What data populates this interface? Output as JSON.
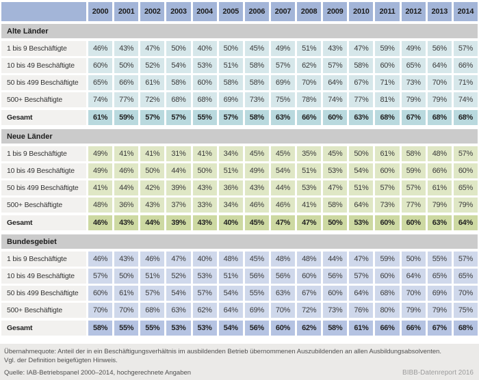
{
  "colors": {
    "page_bg": "#ffffff",
    "header_blue": "#a3b5d8",
    "section_header_bg": "#cbcbcb",
    "label_bg": "#f2f1ef",
    "alte_cell": "#d6e7ea",
    "alte_total": "#b9d9de",
    "neue_cell": "#dfe7c5",
    "neue_total": "#cdd9a2",
    "bund_cell": "#cfd8eb",
    "bund_total": "#b5c3e2",
    "footer_bg": "#ebeae8",
    "brand_text": "#9b9b9b"
  },
  "years": [
    "2000",
    "2001",
    "2002",
    "2003",
    "2004",
    "2005",
    "2006",
    "2007",
    "2008",
    "2009",
    "2010",
    "2011",
    "2012",
    "2013",
    "2014"
  ],
  "sections": [
    {
      "title": "Alte Länder",
      "theme": "alte",
      "rows": [
        {
          "label": "1 bis 9 Beschäftigte",
          "total": false,
          "values": [
            "46%",
            "43%",
            "47%",
            "50%",
            "40%",
            "50%",
            "45%",
            "49%",
            "51%",
            "43%",
            "47%",
            "59%",
            "49%",
            "56%",
            "57%"
          ]
        },
        {
          "label": "10 bis 49 Beschäftigte",
          "total": false,
          "values": [
            "60%",
            "50%",
            "52%",
            "54%",
            "53%",
            "51%",
            "58%",
            "57%",
            "62%",
            "57%",
            "58%",
            "60%",
            "65%",
            "64%",
            "66%"
          ]
        },
        {
          "label": "50 bis 499 Beschäftigte",
          "total": false,
          "values": [
            "65%",
            "66%",
            "61%",
            "58%",
            "60%",
            "58%",
            "58%",
            "69%",
            "70%",
            "64%",
            "67%",
            "71%",
            "73%",
            "70%",
            "71%"
          ]
        },
        {
          "label": "500+ Beschäftigte",
          "total": false,
          "values": [
            "74%",
            "77%",
            "72%",
            "68%",
            "68%",
            "69%",
            "73%",
            "75%",
            "78%",
            "74%",
            "77%",
            "81%",
            "79%",
            "79%",
            "74%"
          ]
        },
        {
          "label": "Gesamt",
          "total": true,
          "values": [
            "61%",
            "59%",
            "57%",
            "57%",
            "55%",
            "57%",
            "58%",
            "63%",
            "66%",
            "60%",
            "63%",
            "68%",
            "67%",
            "68%",
            "68%"
          ]
        }
      ]
    },
    {
      "title": "Neue Länder",
      "theme": "neue",
      "rows": [
        {
          "label": "1 bis 9 Beschäftigte",
          "total": false,
          "values": [
            "49%",
            "41%",
            "41%",
            "31%",
            "41%",
            "34%",
            "45%",
            "45%",
            "35%",
            "45%",
            "50%",
            "61%",
            "58%",
            "48%",
            "57%"
          ]
        },
        {
          "label": "10 bis 49 Beschäftigte",
          "total": false,
          "values": [
            "49%",
            "46%",
            "50%",
            "44%",
            "50%",
            "51%",
            "49%",
            "54%",
            "51%",
            "53%",
            "54%",
            "60%",
            "59%",
            "66%",
            "60%"
          ]
        },
        {
          "label": "50 bis 499 Beschäftigte",
          "total": false,
          "values": [
            "41%",
            "44%",
            "42%",
            "39%",
            "43%",
            "36%",
            "43%",
            "44%",
            "53%",
            "47%",
            "51%",
            "57%",
            "57%",
            "61%",
            "65%"
          ]
        },
        {
          "label": "500+ Beschäftigte",
          "total": false,
          "values": [
            "48%",
            "36%",
            "43%",
            "37%",
            "33%",
            "34%",
            "46%",
            "46%",
            "41%",
            "58%",
            "64%",
            "73%",
            "77%",
            "79%",
            "79%"
          ]
        },
        {
          "label": "Gesamt",
          "total": true,
          "values": [
            "46%",
            "43%",
            "44%",
            "39%",
            "43%",
            "40%",
            "45%",
            "47%",
            "47%",
            "50%",
            "53%",
            "60%",
            "60%",
            "63%",
            "64%"
          ]
        }
      ]
    },
    {
      "title": "Bundesgebiet",
      "theme": "bund",
      "rows": [
        {
          "label": "1 bis 9 Beschäftigte",
          "total": false,
          "values": [
            "46%",
            "43%",
            "46%",
            "47%",
            "40%",
            "48%",
            "45%",
            "48%",
            "48%",
            "44%",
            "47%",
            "59%",
            "50%",
            "55%",
            "57%"
          ]
        },
        {
          "label": "10 bis 49 Beschäftigte",
          "total": false,
          "values": [
            "57%",
            "50%",
            "51%",
            "52%",
            "53%",
            "51%",
            "56%",
            "56%",
            "60%",
            "56%",
            "57%",
            "60%",
            "64%",
            "65%",
            "65%"
          ]
        },
        {
          "label": "50 bis 499 Beschäftigte",
          "total": false,
          "values": [
            "60%",
            "61%",
            "57%",
            "54%",
            "57%",
            "54%",
            "55%",
            "63%",
            "67%",
            "60%",
            "64%",
            "68%",
            "70%",
            "69%",
            "70%"
          ]
        },
        {
          "label": "500+ Beschäftigte",
          "total": false,
          "values": [
            "70%",
            "70%",
            "68%",
            "63%",
            "62%",
            "64%",
            "69%",
            "70%",
            "72%",
            "73%",
            "76%",
            "80%",
            "79%",
            "79%",
            "75%"
          ]
        },
        {
          "label": "Gesamt",
          "total": true,
          "values": [
            "58%",
            "55%",
            "55%",
            "53%",
            "53%",
            "54%",
            "56%",
            "60%",
            "62%",
            "58%",
            "61%",
            "66%",
            "66%",
            "67%",
            "68%"
          ]
        }
      ]
    }
  ],
  "footer": {
    "note1": "Übernahmequote: Anteil der in ein Beschäftigungsverhältnis im ausbildenden Betrieb übernommenen Auszubildenden an allen Ausbildungsabsolventen.",
    "note2": "Vgl. der Definition beigefügten Hinweis.",
    "source": "Quelle: IAB-Betriebspanel 2000–2014, hochgerechnete Angaben",
    "brand": "BIBB-Datenreport 2016"
  },
  "chart_data": {
    "type": "table",
    "unit": "%",
    "columns": [
      "2000",
      "2001",
      "2002",
      "2003",
      "2004",
      "2005",
      "2006",
      "2007",
      "2008",
      "2009",
      "2010",
      "2011",
      "2012",
      "2013",
      "2014"
    ],
    "row_groups": [
      {
        "group": "Alte Länder",
        "rows": [
          {
            "name": "1 bis 9 Beschäftigte",
            "values": [
              46,
              43,
              47,
              50,
              40,
              50,
              45,
              49,
              51,
              43,
              47,
              59,
              49,
              56,
              57
            ]
          },
          {
            "name": "10 bis 49 Beschäftigte",
            "values": [
              60,
              50,
              52,
              54,
              53,
              51,
              58,
              57,
              62,
              57,
              58,
              60,
              65,
              64,
              66
            ]
          },
          {
            "name": "50 bis 499 Beschäftigte",
            "values": [
              65,
              66,
              61,
              58,
              60,
              58,
              58,
              69,
              70,
              64,
              67,
              71,
              73,
              70,
              71
            ]
          },
          {
            "name": "500+ Beschäftigte",
            "values": [
              74,
              77,
              72,
              68,
              68,
              69,
              73,
              75,
              78,
              74,
              77,
              81,
              79,
              79,
              74
            ]
          },
          {
            "name": "Gesamt",
            "values": [
              61,
              59,
              57,
              57,
              55,
              57,
              58,
              63,
              66,
              60,
              63,
              68,
              67,
              68,
              68
            ]
          }
        ]
      },
      {
        "group": "Neue Länder",
        "rows": [
          {
            "name": "1 bis 9 Beschäftigte",
            "values": [
              49,
              41,
              41,
              31,
              41,
              34,
              45,
              45,
              35,
              45,
              50,
              61,
              58,
              48,
              57
            ]
          },
          {
            "name": "10 bis 49 Beschäftigte",
            "values": [
              49,
              46,
              50,
              44,
              50,
              51,
              49,
              54,
              51,
              53,
              54,
              60,
              59,
              66,
              60
            ]
          },
          {
            "name": "50 bis 499 Beschäftigte",
            "values": [
              41,
              44,
              42,
              39,
              43,
              36,
              43,
              44,
              53,
              47,
              51,
              57,
              57,
              61,
              65
            ]
          },
          {
            "name": "500+ Beschäftigte",
            "values": [
              48,
              36,
              43,
              37,
              33,
              34,
              46,
              46,
              41,
              58,
              64,
              73,
              77,
              79,
              79
            ]
          },
          {
            "name": "Gesamt",
            "values": [
              46,
              43,
              44,
              39,
              43,
              40,
              45,
              47,
              47,
              50,
              53,
              60,
              60,
              63,
              64
            ]
          }
        ]
      },
      {
        "group": "Bundesgebiet",
        "rows": [
          {
            "name": "1 bis 9 Beschäftigte",
            "values": [
              46,
              43,
              46,
              47,
              40,
              48,
              45,
              48,
              48,
              44,
              47,
              59,
              50,
              55,
              57
            ]
          },
          {
            "name": "10 bis 49 Beschäftigte",
            "values": [
              57,
              50,
              51,
              52,
              53,
              51,
              56,
              56,
              60,
              56,
              57,
              60,
              64,
              65,
              65
            ]
          },
          {
            "name": "50 bis 499 Beschäftigte",
            "values": [
              60,
              61,
              57,
              54,
              57,
              54,
              55,
              63,
              67,
              60,
              64,
              68,
              70,
              69,
              70
            ]
          },
          {
            "name": "500+ Beschäftigte",
            "values": [
              70,
              70,
              68,
              63,
              62,
              64,
              69,
              70,
              72,
              73,
              76,
              80,
              79,
              79,
              75
            ]
          },
          {
            "name": "Gesamt",
            "values": [
              58,
              55,
              55,
              53,
              53,
              54,
              56,
              60,
              62,
              58,
              61,
              66,
              66,
              67,
              68
            ]
          }
        ]
      }
    ]
  }
}
